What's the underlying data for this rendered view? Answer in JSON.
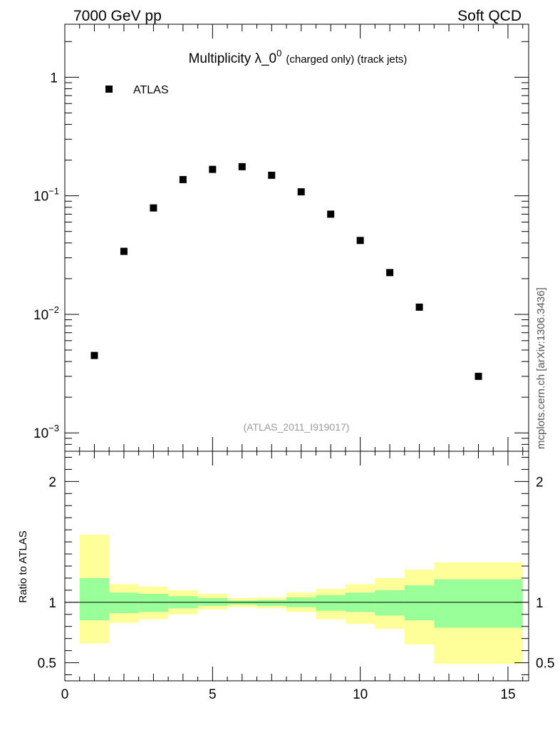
{
  "header": {
    "left": "7000 GeV pp",
    "right": "Soft QCD"
  },
  "side_label": "mcplots.cern.ch [arXiv:1306.3436]",
  "chart_data": [
    {
      "type": "scatter",
      "title_main": "Multiplicity λ_0",
      "title_sup": "0",
      "title_small": "(charged only) (track jets)",
      "legend": [
        {
          "label": "ATLAS",
          "color": "#000000",
          "marker": "square"
        }
      ],
      "legend_position": "top-left",
      "annotation": "(ATLAS_2011_I919017)",
      "annotation_color": "#9a9a9a",
      "yscale": "log",
      "ylim": [
        0.0007,
        2.8
      ],
      "xlim": [
        0,
        15.7
      ],
      "ytick_labels": [
        {
          "value": 1,
          "base": "1",
          "exp": ""
        },
        {
          "value": 0.1,
          "base": "10",
          "exp": "−1"
        },
        {
          "value": 0.01,
          "base": "10",
          "exp": "−2"
        },
        {
          "value": 0.001,
          "base": "10",
          "exp": "−3"
        }
      ],
      "series": [
        {
          "name": "ATLAS",
          "x": [
            1,
            2,
            3,
            4,
            5,
            6,
            7,
            8,
            9,
            10,
            11,
            12,
            14
          ],
          "y": [
            0.0045,
            0.034,
            0.079,
            0.137,
            0.167,
            0.176,
            0.149,
            0.108,
            0.07,
            0.042,
            0.0225,
            0.0115,
            0.003
          ]
        }
      ]
    },
    {
      "type": "area",
      "ylabel": "Ratio to ATLAS",
      "yscale": "linear",
      "ylim": [
        0.35,
        2.25
      ],
      "xlim": [
        0,
        15.7
      ],
      "ytick_labels_left": [
        "2",
        "1",
        "0.5"
      ],
      "ytick_labels_right": [
        "2",
        "1",
        "0.5"
      ],
      "ytick_values": [
        2,
        1,
        0.5
      ],
      "xtick_labels": [
        "0",
        "5",
        "10",
        "15"
      ],
      "xtick_values": [
        0,
        5,
        10,
        15
      ],
      "reference_line": 1,
      "band_colors": {
        "outer": "#ffff99",
        "inner": "#99ff99"
      },
      "bins": [
        {
          "x0": 0.5,
          "x1": 1.5,
          "inner": [
            0.85,
            1.2
          ],
          "outer": [
            0.66,
            1.56
          ]
        },
        {
          "x0": 1.5,
          "x1": 2.5,
          "inner": [
            0.91,
            1.08
          ],
          "outer": [
            0.83,
            1.15
          ]
        },
        {
          "x0": 2.5,
          "x1": 3.5,
          "inner": [
            0.92,
            1.07
          ],
          "outer": [
            0.86,
            1.13
          ]
        },
        {
          "x0": 3.5,
          "x1": 4.5,
          "inner": [
            0.95,
            1.05
          ],
          "outer": [
            0.9,
            1.1
          ]
        },
        {
          "x0": 4.5,
          "x1": 5.5,
          "inner": [
            0.97,
            1.035
          ],
          "outer": [
            0.94,
            1.07
          ]
        },
        {
          "x0": 5.5,
          "x1": 6.5,
          "inner": [
            0.98,
            1.015
          ],
          "outer": [
            0.96,
            1.035
          ]
        },
        {
          "x0": 6.5,
          "x1": 7.5,
          "inner": [
            0.97,
            1.02
          ],
          "outer": [
            0.95,
            1.04
          ]
        },
        {
          "x0": 7.5,
          "x1": 8.5,
          "inner": [
            0.96,
            1.04
          ],
          "outer": [
            0.92,
            1.08
          ]
        },
        {
          "x0": 8.5,
          "x1": 9.5,
          "inner": [
            0.93,
            1.06
          ],
          "outer": [
            0.86,
            1.11
          ]
        },
        {
          "x0": 9.5,
          "x1": 10.5,
          "inner": [
            0.92,
            1.08
          ],
          "outer": [
            0.82,
            1.15
          ]
        },
        {
          "x0": 10.5,
          "x1": 11.5,
          "inner": [
            0.89,
            1.1
          ],
          "outer": [
            0.78,
            1.2
          ]
        },
        {
          "x0": 11.5,
          "x1": 12.5,
          "inner": [
            0.85,
            1.14
          ],
          "outer": [
            0.65,
            1.27
          ]
        },
        {
          "x0": 12.5,
          "x1": 15.5,
          "inner": [
            0.79,
            1.19
          ],
          "outer": [
            0.49,
            1.33
          ]
        }
      ]
    }
  ]
}
